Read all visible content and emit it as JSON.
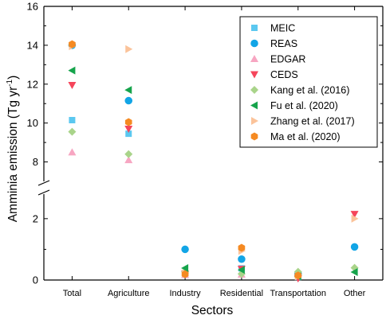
{
  "chart_data": {
    "type": "scatter",
    "xlabel": "Sectors",
    "ylabel_main": "Amminia emission (Tg yr",
    "ylabel_sup": "-1",
    "ylabel_close": ")",
    "categories": [
      "Total",
      "Agriculture",
      "Industry",
      "Residential",
      "Transportation",
      "Other"
    ],
    "y_axis": {
      "broken": true,
      "lower_range": [
        0,
        2.8
      ],
      "upper_range": [
        7,
        16
      ],
      "lower_ticks": [
        "0",
        "2"
      ],
      "upper_ticks": [
        "8",
        "10",
        "12",
        "14",
        "16"
      ]
    },
    "legend_position": "top-right",
    "grid": false,
    "series": [
      {
        "name": "MEIC",
        "marker": "square",
        "color": "#5bc8f0",
        "values": [
          10.15,
          9.45,
          0.2,
          0.38,
          0.1,
          null
        ]
      },
      {
        "name": "REAS",
        "marker": "circle",
        "color": "#12a5e6",
        "values": [
          14.0,
          11.15,
          1.0,
          0.68,
          0.2,
          1.08
        ]
      },
      {
        "name": "EDGAR",
        "marker": "triangle-up",
        "color": "#f7a6c2",
        "values": [
          8.5,
          8.1,
          0.17,
          0.18,
          0.22,
          null
        ]
      },
      {
        "name": "CEDS",
        "marker": "triangle-down",
        "color": "#f5455b",
        "values": [
          11.95,
          9.7,
          0.2,
          0.36,
          0.05,
          2.15
        ]
      },
      {
        "name": "Kang et al. (2016)",
        "marker": "diamond",
        "color": "#a9d48a",
        "values": [
          9.55,
          8.4,
          0.27,
          0.2,
          0.27,
          0.4
        ]
      },
      {
        "name": "Fu et al. (2020)",
        "marker": "triangle-left",
        "color": "#16a44c",
        "values": [
          12.7,
          11.7,
          0.39,
          0.33,
          0.12,
          0.26
        ]
      },
      {
        "name": "Zhang et al. (2017)",
        "marker": "triangle-right",
        "color": "#fbc39a",
        "values": [
          13.95,
          13.8,
          0.22,
          0.95,
          0.12,
          2.0
        ]
      },
      {
        "name": "Ma et al. (2020)",
        "marker": "hexagon",
        "color": "#f58a22",
        "values": [
          14.05,
          10.05,
          0.19,
          1.05,
          0.15,
          null
        ]
      }
    ]
  }
}
